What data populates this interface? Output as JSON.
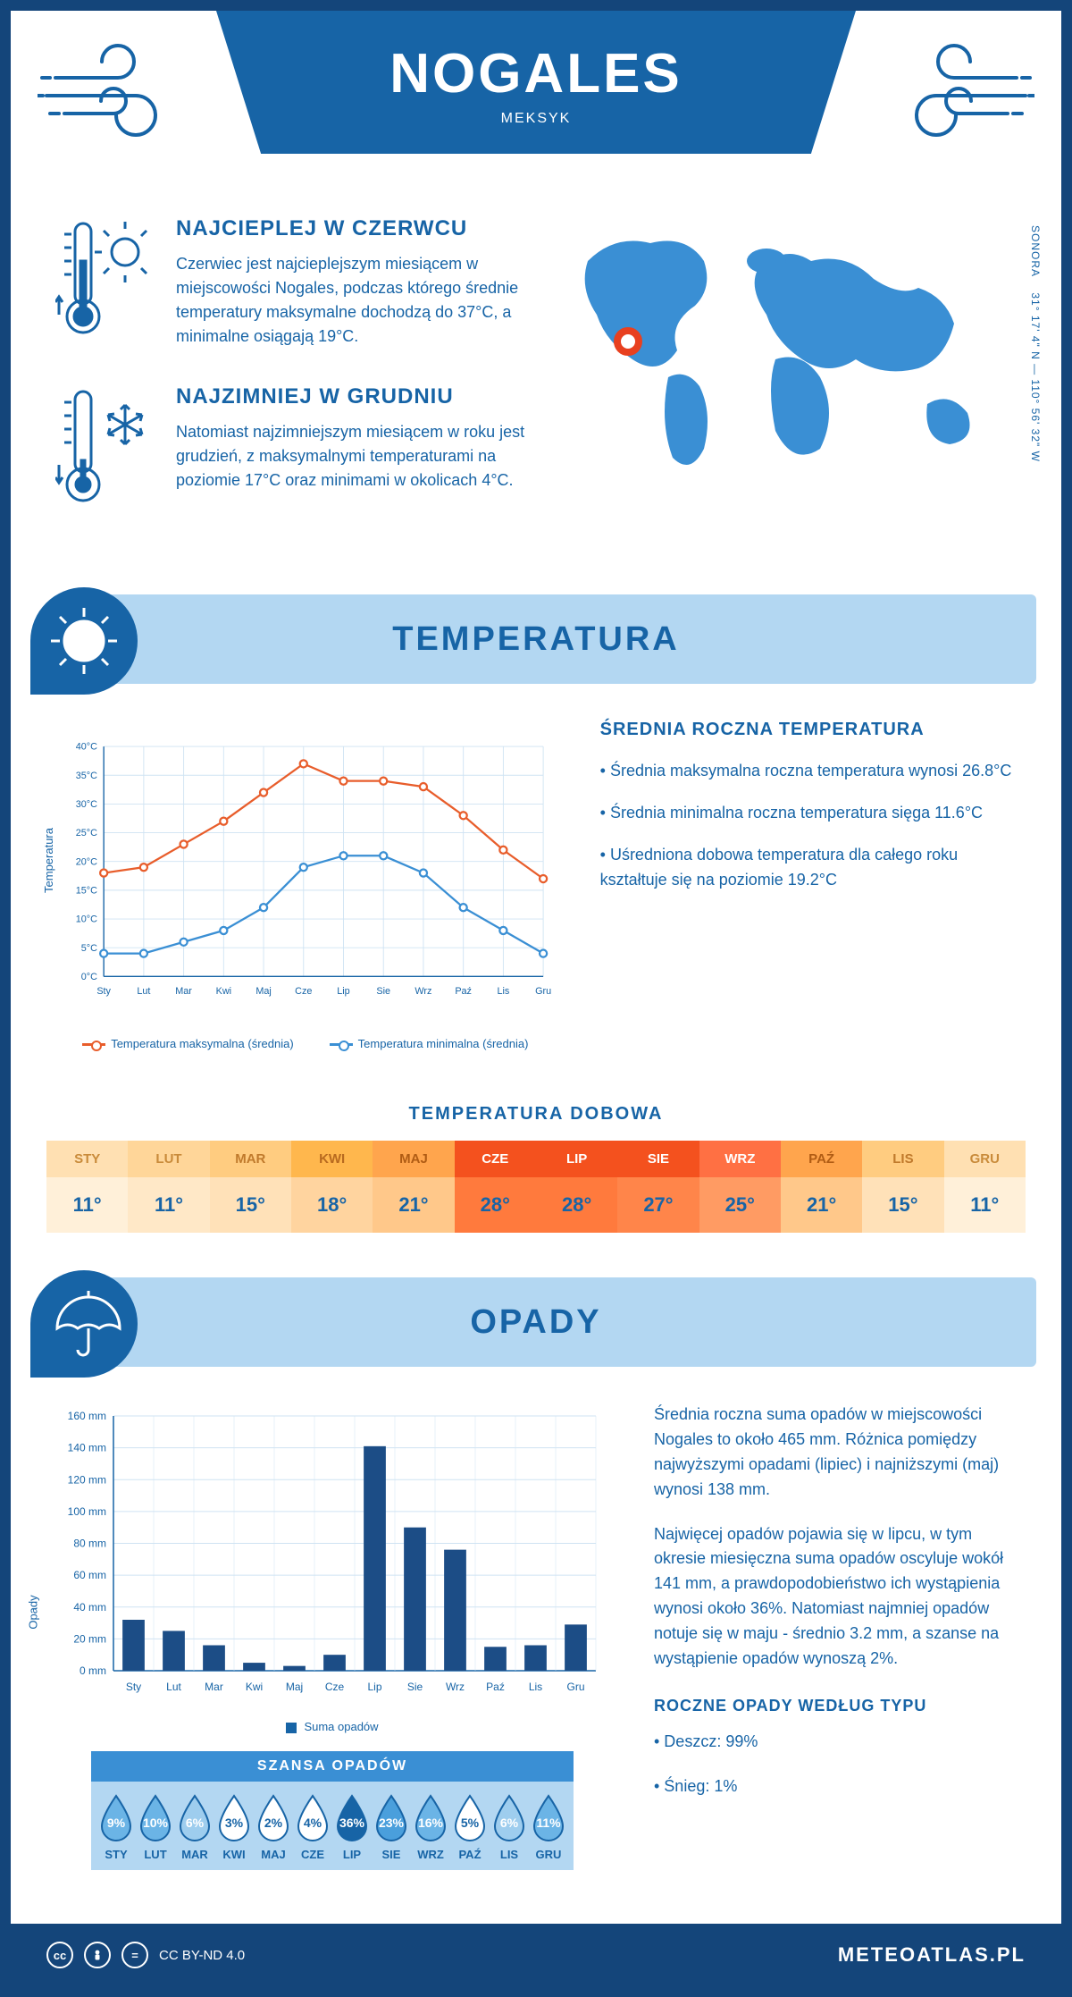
{
  "header": {
    "city": "NOGALES",
    "country": "MEKSYK"
  },
  "coords": {
    "region": "SONORA",
    "lat": "31° 17' 4\" N",
    "lon": "110° 56' 32\" W"
  },
  "facts": {
    "hot": {
      "title": "NAJCIEPLEJ W CZERWCU",
      "text": "Czerwiec jest najcieplejszym miesiącem w miejscowości Nogales, podczas którego średnie temperatury maksymalne dochodzą do 37°C, a minimalne osiągają 19°C."
    },
    "cold": {
      "title": "NAJZIMNIEJ W GRUDNIU",
      "text": "Natomiast najzimniejszym miesiącem w roku jest grudzień, z maksymalnymi temperaturami na poziomie 17°C oraz minimami w okolicach 4°C."
    }
  },
  "sections": {
    "temperature": "TEMPERATURA",
    "precip": "OPADY"
  },
  "months": [
    "Sty",
    "Lut",
    "Mar",
    "Kwi",
    "Maj",
    "Cze",
    "Lip",
    "Sie",
    "Wrz",
    "Paź",
    "Lis",
    "Gru"
  ],
  "months_upper": [
    "STY",
    "LUT",
    "MAR",
    "KWI",
    "MAJ",
    "CZE",
    "LIP",
    "SIE",
    "WRZ",
    "PAŹ",
    "LIS",
    "GRU"
  ],
  "temp_chart": {
    "type": "line",
    "ylabel": "Temperatura",
    "ylim": [
      0,
      40
    ],
    "ytick_step": 5,
    "y_suffix": "°C",
    "max_series": {
      "name": "Temperatura maksymalna (średnia)",
      "color": "#e85d2b",
      "values": [
        18,
        19,
        23,
        27,
        32,
        37,
        34,
        34,
        33,
        28,
        22,
        17
      ]
    },
    "min_series": {
      "name": "Temperatura minimalna (średnia)",
      "color": "#3a8fd4",
      "values": [
        4,
        4,
        6,
        8,
        12,
        19,
        21,
        21,
        18,
        12,
        8,
        4
      ]
    },
    "grid_color": "#cfe3f3",
    "legend_max": "Temperatura maksymalna (średnia)",
    "legend_min": "Temperatura minimalna (średnia)"
  },
  "temp_side": {
    "title": "ŚREDNIA ROCZNA TEMPERATURA",
    "b1": "• Średnia maksymalna roczna temperatura wynosi 26.8°C",
    "b2": "• Średnia minimalna roczna temperatura sięga 11.6°C",
    "b3": "• Uśredniona dobowa temperatura dla całego roku kształtuje się na poziomie 19.2°C"
  },
  "daily": {
    "title": "TEMPERATURA DOBOWA",
    "values": [
      "11°",
      "11°",
      "15°",
      "18°",
      "21°",
      "28°",
      "28°",
      "27°",
      "25°",
      "21°",
      "15°",
      "11°"
    ],
    "head_colors": [
      "#ffe0b2",
      "#ffd699",
      "#ffcc80",
      "#ffb74d",
      "#ffa54d",
      "#f4511e",
      "#f4511e",
      "#f4511e",
      "#ff7043",
      "#ffa54d",
      "#ffcc80",
      "#ffe0b2"
    ],
    "val_colors": [
      "#fff0d9",
      "#ffe8c7",
      "#ffe1b8",
      "#ffd49f",
      "#ffc88a",
      "#ff7a3d",
      "#ff7a3d",
      "#ff854a",
      "#ff9b63",
      "#ffc88a",
      "#ffe1b8",
      "#fff0d9"
    ],
    "head_text_colors": [
      "#c98b3a",
      "#c98b3a",
      "#c07a2c",
      "#b86a1f",
      "#b05c14",
      "#ffffff",
      "#ffffff",
      "#ffffff",
      "#ffffff",
      "#b05c14",
      "#c07a2c",
      "#c98b3a"
    ]
  },
  "precip_chart": {
    "type": "bar",
    "ylabel": "Opady",
    "color": "#1c4d86",
    "ylim": [
      0,
      160
    ],
    "ytick_step": 20,
    "y_suffix": " mm",
    "values": [
      32,
      25,
      16,
      5,
      3,
      10,
      141,
      90,
      76,
      15,
      16,
      29
    ],
    "legend": "Suma opadów"
  },
  "precip_side": {
    "p1": "Średnia roczna suma opadów w miejscowości Nogales to około 465 mm. Różnica pomiędzy najwyższymi opadami (lipiec) i najniższymi (maj) wynosi 138 mm.",
    "p2": "Najwięcej opadów pojawia się w lipcu, w tym okresie miesięczna suma opadów oscyluje wokół 141 mm, a prawdopodobieństwo ich wystąpienia wynosi około 36%. Natomiast najmniej opadów notuje się w maju - średnio 3.2 mm, a szanse na wystąpienie opadów wynoszą 2%.",
    "type_title": "ROCZNE OPADY WEDŁUG TYPU",
    "type_1": "• Deszcz: 99%",
    "type_2": "• Śnieg: 1%"
  },
  "chance": {
    "title": "SZANSA OPADÓW",
    "values": [
      9,
      10,
      6,
      3,
      2,
      4,
      36,
      23,
      16,
      5,
      6,
      11
    ],
    "colors_fill": [
      "#6bb4e6",
      "#6bb4e6",
      "#9ecdee",
      "#ffffff",
      "#ffffff",
      "#ffffff",
      "#1764a6",
      "#4a9fdc",
      "#6bb4e6",
      "#ffffff",
      "#9ecdee",
      "#6bb4e6"
    ],
    "colors_text": [
      "#ffffff",
      "#ffffff",
      "#ffffff",
      "#1764a6",
      "#1764a6",
      "#1764a6",
      "#ffffff",
      "#ffffff",
      "#ffffff",
      "#1764a6",
      "#ffffff",
      "#ffffff"
    ]
  },
  "footer": {
    "license": "CC BY-ND 4.0",
    "brand": "METEOATLAS.PL"
  },
  "colors": {
    "brand": "#1764a6",
    "light": "#b3d7f2",
    "accent": "#3a8fd4"
  }
}
